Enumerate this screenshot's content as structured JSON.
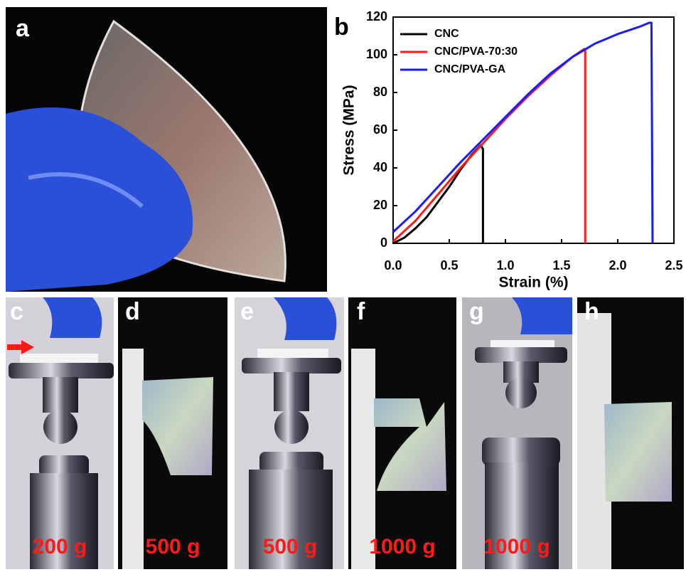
{
  "photos": [
    {
      "label": "a"
    },
    {
      "label": "c",
      "caption": "200 g"
    },
    {
      "label": "d",
      "caption": "500 g"
    },
    {
      "label": "e",
      "caption": "500 g"
    },
    {
      "label": "f",
      "caption": "1000 g"
    },
    {
      "label": "g",
      "caption": "1000 g"
    },
    {
      "label": "h"
    }
  ],
  "chart_data": {
    "type": "line",
    "panel_label": "b",
    "x_label": "Strain (%)",
    "y_label": "Stress (MPa)",
    "xlim": [
      0,
      2.5
    ],
    "xticks": [
      {
        "value": 0,
        "label": "0.0"
      },
      0.5,
      {
        "value": 1,
        "label": "1.0"
      },
      1.5,
      {
        "value": 2,
        "label": "2.0"
      },
      2.5
    ],
    "ylim": [
      0,
      120
    ],
    "yticks": [
      0,
      20,
      40,
      60,
      80,
      100,
      120
    ],
    "legend": "upper left",
    "series": [
      {
        "name": "CNC",
        "color": "#000000",
        "x": [
          0,
          0.1,
          0.2,
          0.3,
          0.4,
          0.5,
          0.6,
          0.7,
          0.78,
          0.8,
          0.8
        ],
        "values": [
          0,
          3,
          8,
          14,
          22,
          30,
          39,
          47,
          52,
          50,
          0
        ]
      },
      {
        "name": "CNC/PVA-70:30",
        "color": "#ff1a1a",
        "x": [
          0,
          0.2,
          0.4,
          0.6,
          0.8,
          1.0,
          1.2,
          1.4,
          1.6,
          1.7,
          1.71,
          1.71
        ],
        "values": [
          1,
          12,
          26,
          40,
          53,
          66,
          78,
          89,
          99,
          103,
          103,
          0
        ]
      },
      {
        "name": "CNC/PVA-GA",
        "color": "#1a1aff",
        "x": [
          0,
          0.2,
          0.4,
          0.6,
          0.8,
          1.0,
          1.2,
          1.4,
          1.6,
          1.8,
          2.0,
          2.2,
          2.28,
          2.3,
          2.31
        ],
        "values": [
          6,
          17,
          30,
          43,
          55,
          67,
          79,
          90,
          99,
          106,
          111,
          115,
          117,
          117,
          0
        ]
      }
    ]
  }
}
